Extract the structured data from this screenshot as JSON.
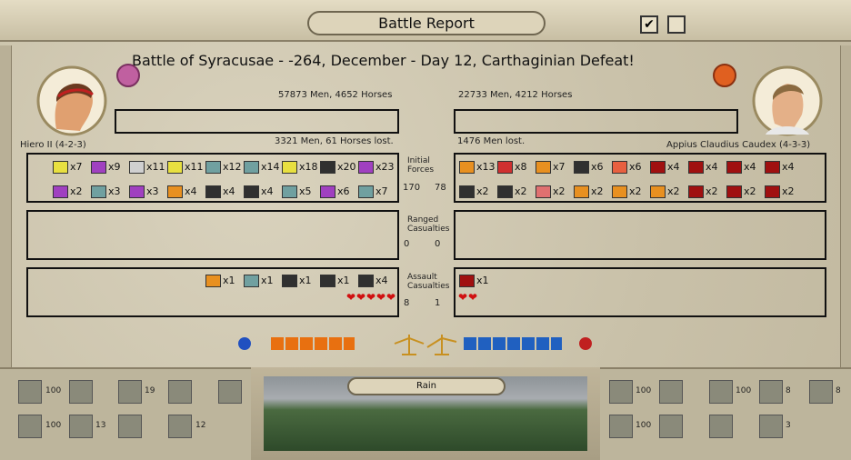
{
  "window_title": "Battle Report",
  "battle_title": "Battle of Syracusae - -264, December - Day 12, Carthaginian Defeat!",
  "left": {
    "commander": "Hiero II (4-2-3)",
    "forces": "57873 Men, 4652 Horses",
    "losses": "3321 Men, 61 Horses lost.",
    "initial": [
      {
        "label": "x7",
        "color": "#e8e040"
      },
      {
        "label": "x9",
        "color": "#a040c0"
      },
      {
        "label": "x11",
        "color": "#d0d0d0"
      },
      {
        "label": "x11",
        "color": "#e8e040"
      },
      {
        "label": "x12",
        "color": "#70a0a0"
      },
      {
        "label": "x14",
        "color": "#70a0a0"
      },
      {
        "label": "x18",
        "color": "#e8e040"
      },
      {
        "label": "x20",
        "color": "#303030"
      },
      {
        "label": "x23",
        "color": "#a040c0"
      },
      {
        "label": "x2",
        "color": "#a040c0"
      },
      {
        "label": "x3",
        "color": "#70a0a0"
      },
      {
        "label": "x3",
        "color": "#a040c0"
      },
      {
        "label": "x4",
        "color": "#e89020"
      },
      {
        "label": "x4",
        "color": "#303030"
      },
      {
        "label": "x4",
        "color": "#303030"
      },
      {
        "label": "x5",
        "color": "#70a0a0"
      },
      {
        "label": "x6",
        "color": "#a040c0"
      },
      {
        "label": "x7",
        "color": "#70a0a0"
      }
    ],
    "assault": [
      {
        "label": "x1",
        "color": "#e89020"
      },
      {
        "label": "x1",
        "color": "#70a0a0"
      },
      {
        "label": "x1",
        "color": "#303030"
      },
      {
        "label": "x1",
        "color": "#303030"
      },
      {
        "label": "x4",
        "color": "#303030"
      }
    ],
    "hearts": 5
  },
  "right": {
    "commander": "Appius Claudius Caudex (4-3-3)",
    "forces": "22733 Men, 4212 Horses",
    "losses": "1476 Men lost.",
    "initial": [
      {
        "label": "x13",
        "color": "#e89020"
      },
      {
        "label": "x8",
        "color": "#d03030"
      },
      {
        "label": "x7",
        "color": "#e89020"
      },
      {
        "label": "x6",
        "color": "#303030"
      },
      {
        "label": "x6",
        "color": "#e86040"
      },
      {
        "label": "x4",
        "color": "#a01010"
      },
      {
        "label": "x4",
        "color": "#a01010"
      },
      {
        "label": "x4",
        "color": "#a01010"
      },
      {
        "label": "x4",
        "color": "#a01010"
      },
      {
        "label": "x2",
        "color": "#303030"
      },
      {
        "label": "x2",
        "color": "#303030"
      },
      {
        "label": "x2",
        "color": "#e07070"
      },
      {
        "label": "x2",
        "color": "#e89020"
      },
      {
        "label": "x2",
        "color": "#e89020"
      },
      {
        "label": "x2",
        "color": "#e89020"
      },
      {
        "label": "x2",
        "color": "#a01010"
      },
      {
        "label": "x2",
        "color": "#a01010"
      },
      {
        "label": "x2",
        "color": "#a01010"
      }
    ],
    "assault": [
      {
        "label": "x1",
        "color": "#a01010"
      }
    ],
    "hearts": 2
  },
  "center": {
    "initial_label": "Initial Forces",
    "initial": [
      170,
      78
    ],
    "ranged_label": "Ranged Casualties",
    "ranged": [
      0,
      0
    ],
    "assault_label": "Assault Casualties",
    "assault": [
      8,
      1
    ]
  },
  "weather": "Rain",
  "bottom_left_numbers": [
    100,
    19,
    100,
    13,
    12
  ],
  "bottom_right_numbers": [
    100,
    100,
    8,
    8,
    100,
    3
  ]
}
